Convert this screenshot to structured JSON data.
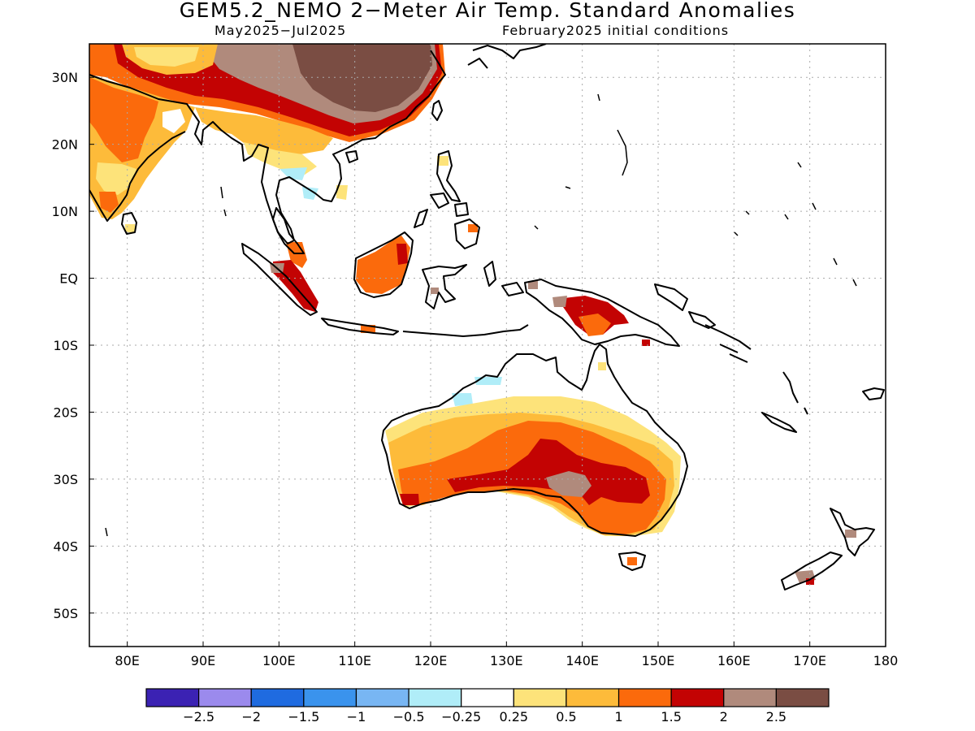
{
  "title": "GEM5.2_NEMO 2−Meter Air Temp. Standard Anomalies",
  "subtitle_left": "May2025−Jul2025",
  "subtitle_right": "February2025 initial conditions",
  "map": {
    "lon_range": [
      75,
      180
    ],
    "lat_range": [
      -55,
      35
    ],
    "lat_ticks": [
      {
        "value": 30,
        "label": "30N"
      },
      {
        "value": 20,
        "label": "20N"
      },
      {
        "value": 10,
        "label": "10N"
      },
      {
        "value": 0,
        "label": "EQ"
      },
      {
        "value": -10,
        "label": "10S"
      },
      {
        "value": -20,
        "label": "20S"
      },
      {
        "value": -30,
        "label": "30S"
      },
      {
        "value": -40,
        "label": "40S"
      },
      {
        "value": -50,
        "label": "50S"
      }
    ],
    "lon_ticks": [
      {
        "value": 80,
        "label": "80E"
      },
      {
        "value": 90,
        "label": "90E"
      },
      {
        "value": 100,
        "label": "100E"
      },
      {
        "value": 110,
        "label": "110E"
      },
      {
        "value": 120,
        "label": "120E"
      },
      {
        "value": 130,
        "label": "130E"
      },
      {
        "value": 140,
        "label": "140E"
      },
      {
        "value": 150,
        "label": "150E"
      },
      {
        "value": 160,
        "label": "160E"
      },
      {
        "value": 170,
        "label": "170E"
      },
      {
        "value": 180,
        "label": "180"
      }
    ],
    "grid": true
  },
  "colorbar": {
    "colors": [
      "#3b22b3",
      "#9b8aed",
      "#1f6be0",
      "#3a93ed",
      "#78b6f3",
      "#b0edf8",
      "#ffffff",
      "#fde37a",
      "#fdbb3a",
      "#fb6a0c",
      "#c30303",
      "#b08a7c",
      "#7a4d43"
    ],
    "labels": [
      "−2.5",
      "−2",
      "−1.5",
      "−1",
      "−0.5",
      "−0.25",
      "0.25",
      "0.5",
      "1",
      "1.5",
      "2",
      "2.5"
    ]
  }
}
